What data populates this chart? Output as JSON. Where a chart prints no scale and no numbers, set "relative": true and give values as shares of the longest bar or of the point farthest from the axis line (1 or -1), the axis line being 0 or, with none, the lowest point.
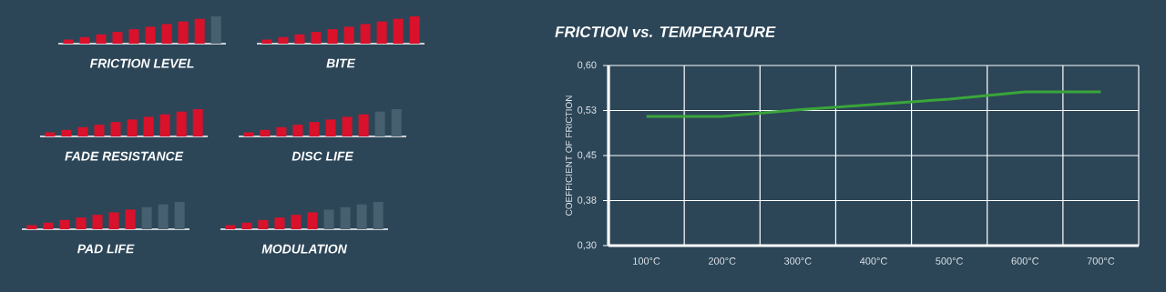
{
  "chart_data": [
    {
      "type": "bar",
      "relative": true,
      "xlabel": "FRICTION LEVEL",
      "categories": [
        null,
        null,
        null,
        null,
        null,
        null,
        null,
        null,
        null,
        null
      ],
      "values": [
        0.15,
        0.24,
        0.34,
        0.43,
        0.53,
        0.62,
        0.72,
        0.81,
        0.91,
        1
      ],
      "colors": [
        "#d9112b",
        "#d9112b",
        "#d9112b",
        "#d9112b",
        "#d9112b",
        "#d9112b",
        "#d9112b",
        "#d9112b",
        "#d9112b",
        "#46606f"
      ]
    },
    {
      "type": "bar",
      "relative": true,
      "xlabel": "BITE",
      "categories": [
        null,
        null,
        null,
        null,
        null,
        null,
        null,
        null,
        null,
        null
      ],
      "values": [
        0.15,
        0.24,
        0.34,
        0.43,
        0.53,
        0.62,
        0.72,
        0.81,
        0.91,
        1
      ],
      "colors": [
        "#d9112b",
        "#d9112b",
        "#d9112b",
        "#d9112b",
        "#d9112b",
        "#d9112b",
        "#d9112b",
        "#d9112b",
        "#d9112b",
        "#d9112b"
      ]
    },
    {
      "type": "bar",
      "relative": true,
      "xlabel": "FADE RESISTANCE",
      "categories": [
        null,
        null,
        null,
        null,
        null,
        null,
        null,
        null,
        null,
        null
      ],
      "values": [
        0.15,
        0.24,
        0.34,
        0.43,
        0.53,
        0.62,
        0.72,
        0.81,
        0.91,
        1
      ],
      "colors": [
        "#d9112b",
        "#d9112b",
        "#d9112b",
        "#d9112b",
        "#d9112b",
        "#d9112b",
        "#d9112b",
        "#d9112b",
        "#d9112b",
        "#d9112b"
      ]
    },
    {
      "type": "bar",
      "relative": true,
      "xlabel": "DISC LIFE",
      "categories": [
        null,
        null,
        null,
        null,
        null,
        null,
        null,
        null,
        null,
        null
      ],
      "values": [
        0.15,
        0.24,
        0.34,
        0.43,
        0.53,
        0.62,
        0.72,
        0.81,
        0.91,
        1
      ],
      "colors": [
        "#d9112b",
        "#d9112b",
        "#d9112b",
        "#d9112b",
        "#d9112b",
        "#d9112b",
        "#d9112b",
        "#d9112b",
        "#46606f",
        "#46606f"
      ]
    },
    {
      "type": "bar",
      "relative": true,
      "xlabel": "PAD LIFE",
      "categories": [
        null,
        null,
        null,
        null,
        null,
        null,
        null,
        null,
        null,
        null
      ],
      "values": [
        0.15,
        0.24,
        0.34,
        0.43,
        0.53,
        0.62,
        0.72,
        0.81,
        0.91,
        1
      ],
      "colors": [
        "#d9112b",
        "#d9112b",
        "#d9112b",
        "#d9112b",
        "#d9112b",
        "#d9112b",
        "#d9112b",
        "#46606f",
        "#46606f",
        "#46606f"
      ]
    },
    {
      "type": "bar",
      "relative": true,
      "xlabel": "MODULATION",
      "categories": [
        null,
        null,
        null,
        null,
        null,
        null,
        null,
        null,
        null,
        null
      ],
      "values": [
        0.15,
        0.24,
        0.34,
        0.43,
        0.53,
        0.62,
        0.72,
        0.81,
        0.91,
        1
      ],
      "colors": [
        "#d9112b",
        "#d9112b",
        "#d9112b",
        "#d9112b",
        "#d9112b",
        "#d9112b",
        "#46606f",
        "#46606f",
        "#46606f",
        "#46606f"
      ]
    },
    {
      "type": "line",
      "title": "FRICTION vs. TEMPERATURE",
      "ylabel": "COEFFICIENT OF FRICTION",
      "categories": [
        "100°C",
        "200°C",
        "300°C",
        "400°C",
        "500°C",
        "600°C",
        "700°C"
      ],
      "values": [
        0.515,
        0.515,
        0.526,
        0.535,
        0.544,
        0.556,
        0.556
      ],
      "color": "#3aa53a",
      "ylim": [
        0.3,
        0.6
      ],
      "yticks": [
        {
          "value": 0.3,
          "label": "0,30"
        },
        {
          "value": 0.375,
          "label": "0,38"
        },
        {
          "value": 0.45,
          "label": "0,45"
        },
        {
          "value": 0.525,
          "label": "0,53"
        },
        {
          "value": 0.6,
          "label": "0,60"
        }
      ],
      "grid": true
    }
  ]
}
